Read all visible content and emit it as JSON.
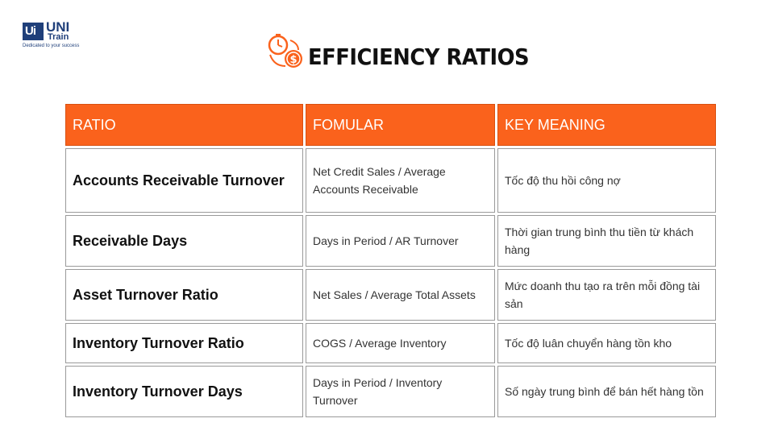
{
  "logo": {
    "box_text": "Ui",
    "brand_top": "UNI",
    "brand_bottom": "Train",
    "tagline": "Dedicated to your success"
  },
  "title": "EFFICIENCY RATIOS",
  "title_icon": "clock-dollar-icon",
  "colors": {
    "accent": "#fa621c",
    "brand": "#1f3f7a"
  },
  "table": {
    "headers": [
      "RATIO",
      "FOMULAR",
      "KEY MEANING"
    ],
    "rows": [
      {
        "ratio": "Accounts Receivable Turnover",
        "formula": "Net Credit Sales / Average Accounts Receivable",
        "meaning": "Tốc độ thu hồi công nợ"
      },
      {
        "ratio": "Receivable Days",
        "formula": "Days in Period / AR Turnover",
        "meaning": "Thời gian trung bình thu tiền từ khách hàng"
      },
      {
        "ratio": "Asset Turnover Ratio",
        "formula": "Net Sales / Average Total Assets",
        "meaning": "Mức doanh thu tạo ra trên mỗi đồng tài sản"
      },
      {
        "ratio": "Inventory Turnover Ratio",
        "formula": "COGS / Average Inventory",
        "meaning": "Tốc độ luân chuyển hàng tồn kho"
      },
      {
        "ratio": "Inventory Turnover Days",
        "formula": "Days in Period / Inventory Turnover",
        "meaning": "Số ngày trung bình để bán hết hàng tồn"
      }
    ]
  }
}
